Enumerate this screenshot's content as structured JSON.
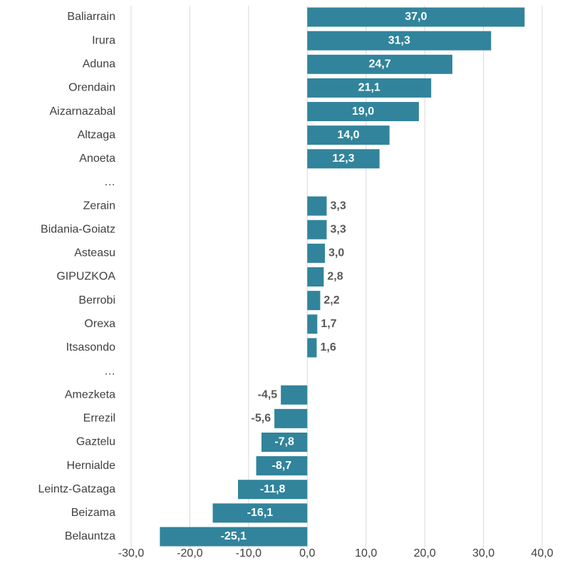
{
  "chart_data": {
    "type": "bar",
    "orientation": "horizontal",
    "categories": [
      "Baliarrain",
      "Irura",
      "Aduna",
      "Orendain",
      "Aizarnazabal",
      "Altzaga",
      "Anoeta",
      "…",
      "Zerain",
      "Bidania-Goiatz",
      "Asteasu",
      "GIPUZKOA",
      "Berrobi",
      "Orexa",
      "Itsasondo",
      "…",
      "Amezketa",
      "Errezil",
      "Gaztelu",
      "Hernialde",
      "Leintz-Gatzaga",
      "Beizama",
      "Belauntza"
    ],
    "values": [
      37.0,
      31.3,
      24.7,
      21.1,
      19.0,
      14.0,
      12.3,
      null,
      3.3,
      3.3,
      3.0,
      2.8,
      2.2,
      1.7,
      1.6,
      null,
      -4.5,
      -5.6,
      -7.8,
      -8.7,
      -11.8,
      -16.1,
      -25.1
    ],
    "value_labels": [
      "37,0",
      "31,3",
      "24,7",
      "21,1",
      "19,0",
      "14,0",
      "12,3",
      null,
      "3,3",
      "3,3",
      "3,0",
      "2,8",
      "2,2",
      "1,7",
      "1,6",
      null,
      "-4,5",
      "-5,6",
      "-7,8",
      "-8,7",
      "-11,8",
      "-16,1",
      "-25,1"
    ],
    "color": "#31849b",
    "xlim": [
      -30,
      40
    ],
    "xticks": [
      {
        "value": -30,
        "label": "-30,0"
      },
      {
        "value": -20,
        "label": "-20,0"
      },
      {
        "value": -10,
        "label": "-10,0"
      },
      {
        "value": 0,
        "label": "0,0"
      },
      {
        "value": 10,
        "label": "10,0"
      },
      {
        "value": 20,
        "label": "20,0"
      },
      {
        "value": 30,
        "label": "30,0"
      },
      {
        "value": 40,
        "label": "40,0"
      }
    ],
    "grid": true
  }
}
